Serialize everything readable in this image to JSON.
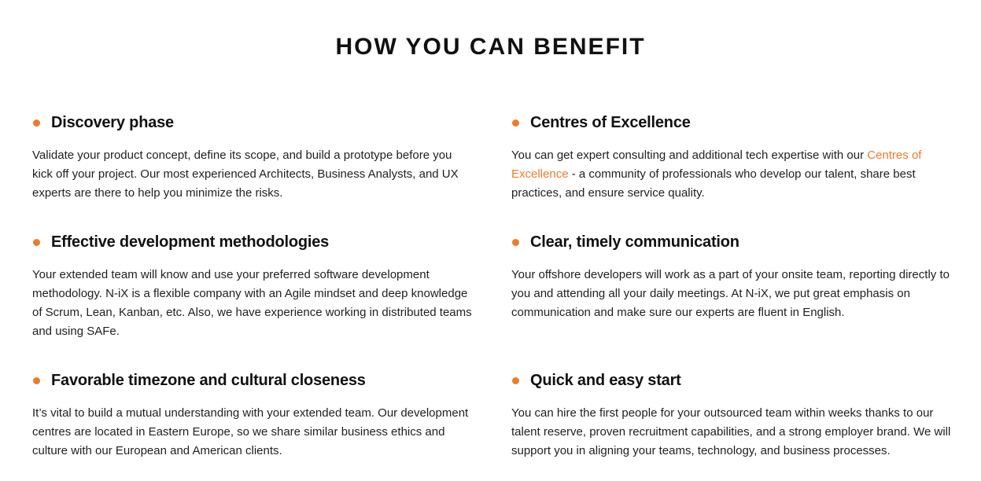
{
  "section": {
    "title": "HOW YOU CAN BENEFIT"
  },
  "colors": {
    "accent": "#ee7b2b",
    "text": "#1f1f1f",
    "heading": "#111111"
  },
  "benefits": [
    {
      "icon": "bullet-dot",
      "title": "Discovery phase",
      "text": "Validate your product concept, define its scope, and build a prototype before you kick off your project. Our most experienced Architects, Business Analysts, and UX experts are there to help you minimize the risks."
    },
    {
      "icon": "bullet-dot",
      "title": "Centres of Excellence",
      "text_before": "You can get expert consulting and additional tech expertise with our ",
      "link_text": "Centres of Excellence",
      "text_after": " - a community of professionals who develop our talent, share best practices, and ensure service quality."
    },
    {
      "icon": "bullet-dot",
      "title": "Effective development methodologies",
      "text": "Your extended team will know and use your preferred software development methodology. N-iX is a flexible company with an Agile mindset and deep knowledge of Scrum, Lean, Kanban, etc. Also, we have experience working in distributed teams and using SAFe."
    },
    {
      "icon": "bullet-dot",
      "title": "Clear, timely communication",
      "text": "Your offshore developers will work as a part of your onsite team, reporting directly to you and attending all your daily meetings. At N-iX, we put great emphasis on communication and make sure our experts are fluent in English."
    },
    {
      "icon": "bullet-dot",
      "title": "Favorable timezone and cultural closeness",
      "text": "It’s vital to build a mutual understanding with your extended team. Our development centres are located in Eastern Europe, so we share similar business ethics and culture with our European and American clients."
    },
    {
      "icon": "bullet-dot",
      "title": "Quick and easy start",
      "text": "You can hire the first people for your outsourced team within weeks thanks to our talent reserve, proven recruitment capabilities, and a strong employer brand. We will support you in aligning your teams, technology, and business processes."
    }
  ]
}
